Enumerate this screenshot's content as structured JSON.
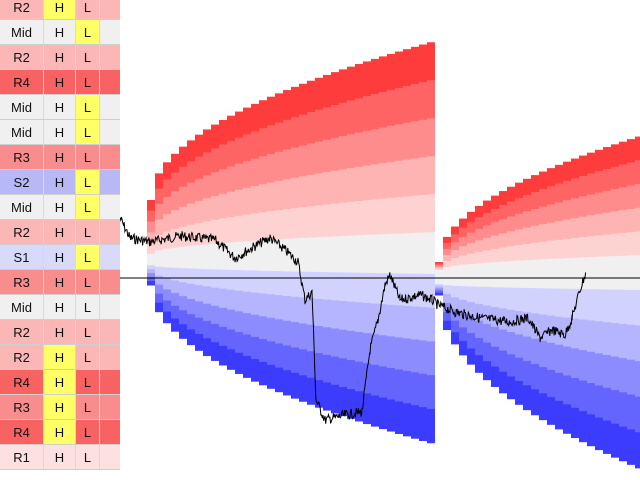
{
  "colors": {
    "R1": "#fde0e0",
    "R2": "#fbb6b6",
    "R3": "#f98c8c",
    "R4": "#f86262",
    "Mid": "#f0f0f0",
    "S1": "#d9d9fb",
    "S2": "#b8b8f6",
    "highlight": "#ffff66",
    "line": "#000000",
    "band_red": [
      "#ff3c3c",
      "#ff6464",
      "#ff8c8c",
      "#ffb4b4",
      "#ffd2d2"
    ],
    "band_blue": [
      "#d2d2ff",
      "#b4b4ff",
      "#8c8cff",
      "#6464ff",
      "#3c3cff"
    ],
    "band_mid": "#f0f0f0"
  },
  "rows": [
    {
      "level": "R2",
      "h": "H",
      "l": "L",
      "h_hl": true,
      "l_hl": false
    },
    {
      "level": "Mid",
      "h": "H",
      "l": "L",
      "h_hl": false,
      "l_hl": true
    },
    {
      "level": "R2",
      "h": "H",
      "l": "L",
      "h_hl": false,
      "l_hl": false
    },
    {
      "level": "R4",
      "h": "H",
      "l": "L",
      "h_hl": false,
      "l_hl": false
    },
    {
      "level": "Mid",
      "h": "H",
      "l": "L",
      "h_hl": false,
      "l_hl": true
    },
    {
      "level": "Mid",
      "h": "H",
      "l": "L",
      "h_hl": false,
      "l_hl": true
    },
    {
      "level": "R3",
      "h": "H",
      "l": "L",
      "h_hl": false,
      "l_hl": false
    },
    {
      "level": "S2",
      "h": "H",
      "l": "L",
      "h_hl": false,
      "l_hl": true
    },
    {
      "level": "Mid",
      "h": "H",
      "l": "L",
      "h_hl": false,
      "l_hl": true
    },
    {
      "level": "R2",
      "h": "H",
      "l": "L",
      "h_hl": false,
      "l_hl": false
    },
    {
      "level": "S1",
      "h": "H",
      "l": "L",
      "h_hl": false,
      "l_hl": true
    },
    {
      "level": "R3",
      "h": "H",
      "l": "L",
      "h_hl": false,
      "l_hl": false
    },
    {
      "level": "Mid",
      "h": "H",
      "l": "L",
      "h_hl": false,
      "l_hl": false
    },
    {
      "level": "R2",
      "h": "H",
      "l": "L",
      "h_hl": false,
      "l_hl": false
    },
    {
      "level": "R2",
      "h": "H",
      "l": "L",
      "h_hl": true,
      "l_hl": false
    },
    {
      "level": "R4",
      "h": "H",
      "l": "L",
      "h_hl": true,
      "l_hl": false
    },
    {
      "level": "R3",
      "h": "H",
      "l": "L",
      "h_hl": true,
      "l_hl": false
    },
    {
      "level": "R4",
      "h": "H",
      "l": "L",
      "h_hl": true,
      "l_hl": false
    },
    {
      "level": "R1",
      "h": "H",
      "l": "L",
      "h_hl": false,
      "l_hl": false
    }
  ]
}
